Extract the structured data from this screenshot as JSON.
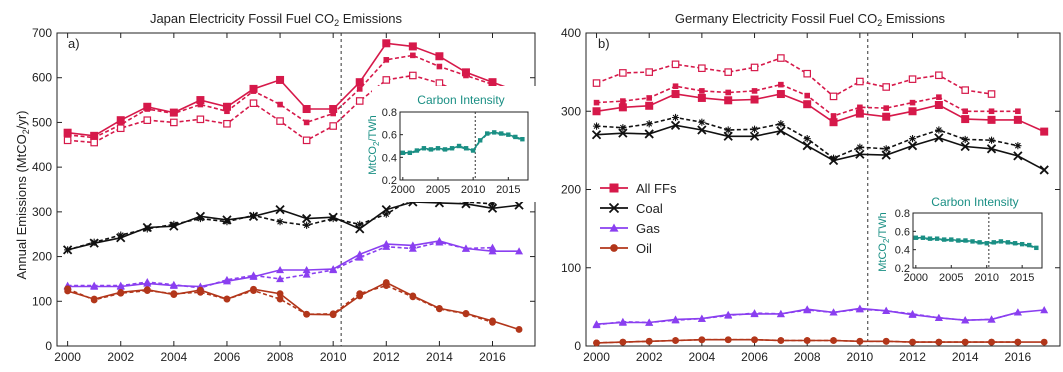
{
  "figure": {
    "ylabel": "Annual Emissions (MtCO",
    "ylabel_sub": "2",
    "ylabel_tail": "/yr)"
  },
  "chart_data": [
    {
      "type": "line",
      "panel_label": "a)",
      "title": "Japan Electricity Fossil Fuel CO",
      "title_sub": "2",
      "title_tail": " Emissions",
      "xlim": [
        1999.6,
        2017.6
      ],
      "ylim": [
        0,
        700
      ],
      "xticks": [
        2000,
        2002,
        2004,
        2006,
        2008,
        2010,
        2012,
        2014,
        2016
      ],
      "yticks": [
        0,
        100,
        200,
        300,
        400,
        500,
        600,
        700
      ],
      "vline_x": 2010.3,
      "years": [
        2000,
        2001,
        2002,
        2003,
        2004,
        2005,
        2006,
        2007,
        2008,
        2009,
        2010,
        2011,
        2012,
        2013,
        2014,
        2015,
        2016,
        2017
      ],
      "series": [
        {
          "key": "ffs_a",
          "color": "#d6194a",
          "marker": "square",
          "dash": false,
          "values": [
            477,
            470,
            505,
            535,
            522,
            550,
            535,
            575,
            595,
            530,
            530,
            590,
            677,
            670,
            648,
            612,
            590,
            568
          ]
        },
        {
          "key": "ffs_b",
          "color": "#d6194a",
          "marker": "square-small",
          "dash": true,
          "values": [
            472,
            466,
            495,
            530,
            520,
            540,
            525,
            570,
            540,
            500,
            520,
            575,
            640,
            650,
            625,
            605,
            585,
            null
          ]
        },
        {
          "key": "ffs_c",
          "color": "#d6194a",
          "marker": "square-open",
          "dash": true,
          "values": [
            460,
            455,
            487,
            505,
            500,
            507,
            497,
            543,
            503,
            460,
            492,
            548,
            595,
            605,
            588,
            560,
            null,
            null
          ]
        },
        {
          "key": "coal_a",
          "color": "#111111",
          "marker": "x",
          "dash": false,
          "values": [
            215,
            230,
            242,
            265,
            268,
            290,
            282,
            290,
            305,
            285,
            288,
            262,
            305,
            322,
            320,
            318,
            308,
            315
          ]
        },
        {
          "key": "coal_b",
          "color": "#111111",
          "marker": "star",
          "dash": true,
          "values": [
            215,
            232,
            248,
            262,
            272,
            285,
            278,
            292,
            278,
            270,
            285,
            272,
            295,
            330,
            328,
            322,
            318,
            null
          ]
        },
        {
          "key": "gas_a",
          "color": "#8a3ff0",
          "marker": "triangle",
          "dash": false,
          "values": [
            133,
            133,
            133,
            140,
            135,
            133,
            145,
            155,
            170,
            170,
            172,
            205,
            228,
            225,
            235,
            218,
            212,
            212
          ]
        },
        {
          "key": "gas_b",
          "color": "#8a3ff0",
          "marker": "triangle",
          "dash": true,
          "values": [
            135,
            135,
            135,
            143,
            137,
            130,
            148,
            158,
            150,
            160,
            170,
            198,
            222,
            218,
            232,
            218,
            220,
            null
          ]
        },
        {
          "key": "oil_a",
          "color": "#b2361a",
          "marker": "circle",
          "dash": false,
          "values": [
            123,
            105,
            120,
            126,
            115,
            125,
            105,
            127,
            117,
            71,
            70,
            112,
            142,
            112,
            84,
            73,
            56,
            37
          ]
        },
        {
          "key": "oil_b",
          "color": "#b2361a",
          "marker": "circle",
          "dash": true,
          "values": [
            128,
            103,
            118,
            124,
            117,
            120,
            105,
            124,
            105,
            71,
            72,
            117,
            135,
            110,
            83,
            72,
            53,
            null
          ]
        }
      ],
      "inset": {
        "title": "Carbon Intensity",
        "ylabel": "MtCO",
        "ylabel_sub": "2",
        "ylabel_tail": "/TWh",
        "color": "#1a8f84",
        "xlim": [
          1999.6,
          2017.8
        ],
        "ylim": [
          0.2,
          0.8
        ],
        "xticks": [
          2000,
          2005,
          2010,
          2015
        ],
        "yticks": [
          0.2,
          0.4,
          0.6,
          0.8
        ],
        "vline_x": 2010.3,
        "years": [
          2000,
          2001,
          2002,
          2003,
          2004,
          2005,
          2006,
          2007,
          2008,
          2009,
          2010,
          2011,
          2012,
          2013,
          2014,
          2015,
          2016,
          2017
        ],
        "values": [
          0.44,
          0.44,
          0.46,
          0.48,
          0.47,
          0.48,
          0.47,
          0.48,
          0.5,
          0.48,
          0.46,
          0.55,
          0.61,
          0.62,
          0.61,
          0.6,
          0.58,
          0.56
        ]
      }
    },
    {
      "type": "line",
      "panel_label": "b)",
      "title": "Germany Electricity Fossil Fuel CO",
      "title_sub": "2",
      "title_tail": " Emissions",
      "xlim": [
        1999.6,
        2017.6
      ],
      "ylim": [
        0,
        400
      ],
      "xticks": [
        2000,
        2002,
        2004,
        2006,
        2008,
        2010,
        2012,
        2014,
        2016
      ],
      "yticks": [
        0,
        100,
        200,
        300,
        400
      ],
      "vline_x": 2010.3,
      "years": [
        2000,
        2001,
        2002,
        2003,
        2004,
        2005,
        2006,
        2007,
        2008,
        2009,
        2010,
        2011,
        2012,
        2013,
        2014,
        2015,
        2016,
        2017
      ],
      "legend": [
        {
          "label": "All FFs",
          "color": "#d6194a",
          "marker": "square"
        },
        {
          "label": "Coal",
          "color": "#111111",
          "marker": "x"
        },
        {
          "label": "Gas",
          "color": "#8a3ff0",
          "marker": "triangle"
        },
        {
          "label": "Oil",
          "color": "#b2361a",
          "marker": "circle"
        }
      ],
      "series": [
        {
          "key": "ffs_a",
          "color": "#d6194a",
          "marker": "square",
          "dash": false,
          "values": [
            300,
            305,
            307,
            322,
            317,
            314,
            315,
            322,
            309,
            286,
            297,
            293,
            300,
            308,
            290,
            289,
            289,
            274
          ]
        },
        {
          "key": "ffs_b",
          "color": "#d6194a",
          "marker": "square-small",
          "dash": true,
          "values": [
            311,
            313,
            317,
            332,
            326,
            324,
            326,
            334,
            320,
            294,
            305,
            304,
            311,
            318,
            300,
            300,
            300,
            null
          ]
        },
        {
          "key": "ffs_c",
          "color": "#d6194a",
          "marker": "square-open",
          "dash": true,
          "values": [
            336,
            349,
            350,
            360,
            355,
            350,
            356,
            368,
            348,
            319,
            338,
            331,
            341,
            346,
            327,
            322,
            null,
            null
          ]
        },
        {
          "key": "coal_a",
          "color": "#111111",
          "marker": "x",
          "dash": false,
          "values": [
            270,
            272,
            271,
            282,
            276,
            268,
            268,
            275,
            256,
            237,
            245,
            244,
            256,
            266,
            255,
            252,
            243,
            225
          ]
        },
        {
          "key": "coal_b",
          "color": "#111111",
          "marker": "star",
          "dash": true,
          "values": [
            281,
            279,
            284,
            292,
            286,
            276,
            277,
            284,
            265,
            240,
            254,
            252,
            265,
            276,
            264,
            263,
            256,
            null
          ]
        },
        {
          "key": "gas_a",
          "color": "#8a3ff0",
          "marker": "triangle",
          "dash": false,
          "values": [
            28,
            30,
            30,
            34,
            35,
            40,
            41,
            41,
            47,
            43,
            48,
            45,
            40,
            36,
            33,
            34,
            43,
            46
          ]
        },
        {
          "key": "gas_b",
          "color": "#8a3ff0",
          "marker": "triangle",
          "dash": true,
          "values": [
            27,
            31,
            30,
            33,
            35,
            39,
            42,
            41,
            46,
            43,
            47,
            45,
            41,
            36,
            33,
            34,
            43,
            null
          ]
        },
        {
          "key": "oil_a",
          "color": "#b2361a",
          "marker": "circle",
          "dash": false,
          "values": [
            4,
            5,
            6,
            7,
            8,
            8,
            8,
            7,
            7,
            7,
            6,
            6,
            5,
            5,
            5,
            5,
            5,
            5
          ]
        },
        {
          "key": "oil_b",
          "color": "#b2361a",
          "marker": "circle",
          "dash": true,
          "values": [
            4,
            5,
            6,
            7,
            8,
            8,
            8,
            7,
            7,
            7,
            6,
            6,
            5,
            5,
            5,
            5,
            5,
            null
          ]
        }
      ],
      "inset": {
        "title": "Carbon Intensity",
        "ylabel": "MtCO",
        "ylabel_sub": "2",
        "ylabel_tail": "/TWh",
        "color": "#1a8f84",
        "xlim": [
          1999.6,
          2017.8
        ],
        "ylim": [
          0.2,
          0.8
        ],
        "xticks": [
          2000,
          2005,
          2010,
          2015
        ],
        "yticks": [
          0.2,
          0.4,
          0.6,
          0.8
        ],
        "vline_x": 2010.3,
        "years": [
          2000,
          2001,
          2002,
          2003,
          2004,
          2005,
          2006,
          2007,
          2008,
          2009,
          2010,
          2011,
          2012,
          2013,
          2014,
          2015,
          2016,
          2017
        ],
        "values": [
          0.53,
          0.53,
          0.52,
          0.52,
          0.51,
          0.51,
          0.5,
          0.5,
          0.49,
          0.48,
          0.47,
          0.48,
          0.49,
          0.48,
          0.47,
          0.46,
          0.45,
          0.42
        ]
      }
    }
  ]
}
